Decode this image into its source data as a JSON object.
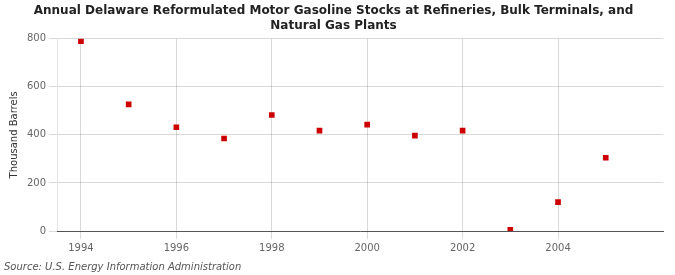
{
  "chart_data": {
    "type": "scatter",
    "title": "Annual Delaware Reformulated Motor Gasoline Stocks at Refineries, Bulk Terminals, and\nNatural Gas Plants",
    "ylabel": "Thousand Barrels",
    "source": "Source: U.S. Energy Information Administration",
    "x": [
      1994,
      1995,
      1996,
      1997,
      1998,
      1999,
      2000,
      2001,
      2002,
      2003,
      2004,
      2005
    ],
    "values": [
      790,
      527,
      432,
      385,
      483,
      418,
      443,
      397,
      418,
      5,
      120,
      305
    ],
    "xlim": [
      1993.5,
      2006.2
    ],
    "ylim": [
      0,
      800
    ],
    "xticks": [
      1994,
      1996,
      1998,
      2000,
      2002,
      2004
    ],
    "yticks": [
      0,
      200,
      400,
      600,
      800
    ],
    "color": "#cc0000",
    "marker": "square",
    "grid": true
  }
}
